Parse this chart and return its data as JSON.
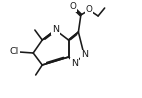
{
  "bg": "#ffffff",
  "bond_color": "#1a1a1a",
  "atom_color": "#1a1a1a",
  "lw": 1.15,
  "fs": 6.8,
  "figsize": [
    1.42,
    0.98
  ],
  "dpi": 100,
  "xlim": [
    0.0,
    1.0
  ],
  "ylim": [
    0.08,
    0.92
  ]
}
